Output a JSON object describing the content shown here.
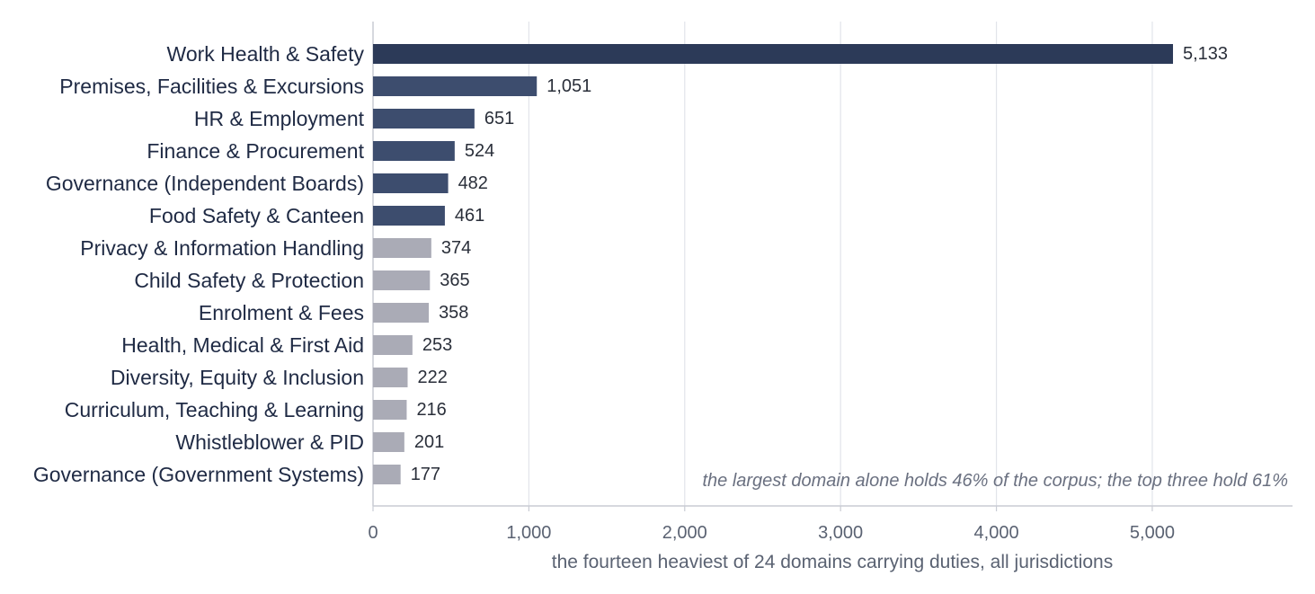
{
  "chart_data": {
    "type": "bar",
    "orientation": "horizontal",
    "categories": [
      "Work Health & Safety",
      "Premises, Facilities & Excursions",
      "HR & Employment",
      "Finance & Procurement",
      "Governance (Independent Boards)",
      "Food Safety & Canteen",
      "Privacy & Information Handling",
      "Child Safety & Protection",
      "Enrolment & Fees",
      "Health, Medical & First Aid",
      "Diversity, Equity & Inclusion",
      "Curriculum, Teaching & Learning",
      "Whistleblower & PID",
      "Governance (Government Systems)"
    ],
    "values": [
      5133,
      1051,
      651,
      524,
      482,
      461,
      374,
      365,
      358,
      253,
      222,
      216,
      201,
      177
    ],
    "value_labels": [
      "5,133",
      "1,051",
      "651",
      "524",
      "482",
      "461",
      "374",
      "365",
      "358",
      "253",
      "222",
      "216",
      "201",
      "177"
    ],
    "highlight_count": 6,
    "colors": {
      "top_bar": "#2c3a58",
      "highlight": "#3d4d6e",
      "muted": "#aaabb6",
      "grid": "#e2e4ea",
      "axis": "#c9ccd4"
    },
    "xlim": [
      0,
      5900
    ],
    "xticks": [
      0,
      1000,
      2000,
      3000,
      4000,
      5000
    ],
    "xtick_labels": [
      "0",
      "1,000",
      "2,000",
      "3,000",
      "4,000",
      "5,000"
    ],
    "xlabel": "the fourteen heaviest of 24 domains carrying duties, all jurisdictions",
    "ylabel": "",
    "title": "",
    "grid": "vertical",
    "legend": "none",
    "annotation": "the largest domain alone holds 46% of the corpus; the top three hold 61%"
  }
}
